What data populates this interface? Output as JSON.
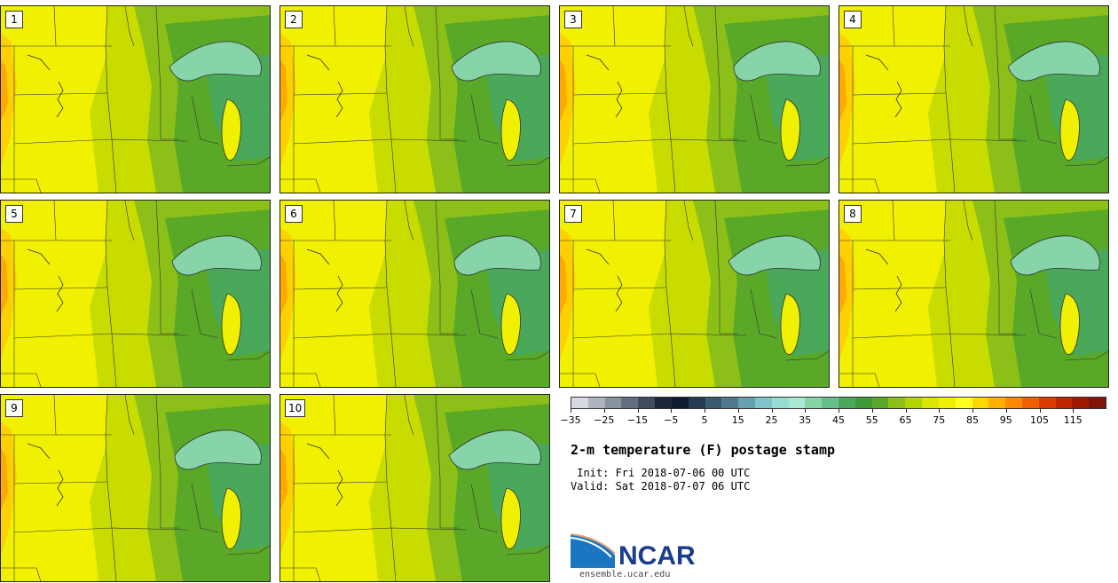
{
  "stamps": [
    {
      "label": "1"
    },
    {
      "label": "2"
    },
    {
      "label": "3"
    },
    {
      "label": "4"
    },
    {
      "label": "5"
    },
    {
      "label": "6"
    },
    {
      "label": "7"
    },
    {
      "label": "8"
    },
    {
      "label": "9"
    },
    {
      "label": "10"
    }
  ],
  "legend": {
    "title": "2-m temperature (F) postage stamp",
    "init": " Init: Fri 2018-07-06 00 UTC",
    "valid": "Valid: Sat 2018-07-07 06 UTC",
    "tick_labels": [
      "−35",
      "−25",
      "−15",
      "−5",
      "5",
      "15",
      "25",
      "35",
      "45",
      "55",
      "65",
      "75",
      "85",
      "95",
      "105",
      "115"
    ],
    "colors": [
      "#d6dbe2",
      "#aeb5bf",
      "#8892a0",
      "#646d7f",
      "#414b5e",
      "#1c2438",
      "#0e1a30",
      "#253b52",
      "#3a5a70",
      "#4f7a8d",
      "#67a0ae",
      "#80c3c8",
      "#96dcd4",
      "#a8e8d5",
      "#86d4a8",
      "#64c08a",
      "#4aa85a",
      "#3f9a3a",
      "#5aa828",
      "#8cc018",
      "#b4d400",
      "#d8e600",
      "#f0f000",
      "#ffff20",
      "#ffd800",
      "#ffb000",
      "#ff8800",
      "#f06000",
      "#dc3c00",
      "#c02400",
      "#a01800",
      "#801408"
    ]
  },
  "logo": {
    "text": "NCAR",
    "url": "ensemble.ucar.edu"
  }
}
